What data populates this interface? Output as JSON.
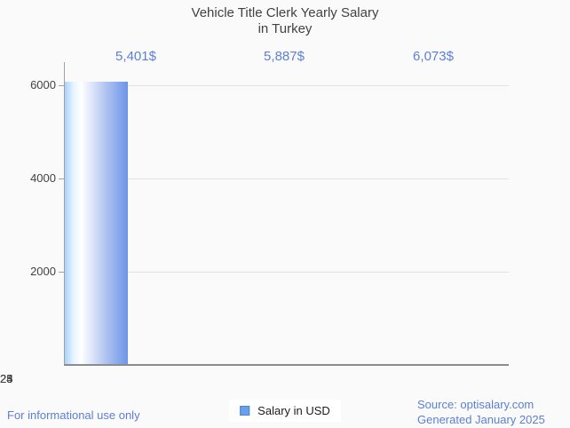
{
  "title": {
    "line1": "Vehicle Title Clerk Yearly Salary",
    "line2": "in Turkey"
  },
  "chart_data": {
    "type": "bar",
    "title": "Vehicle Title Clerk Yearly Salary in Turkey",
    "categories": [
      "2023",
      "2024",
      "2025"
    ],
    "values": [
      5401,
      5887,
      6073
    ],
    "value_labels": [
      "5,401$",
      "5,887$",
      "6,073$"
    ],
    "series": [
      {
        "name": "Salary in USD",
        "values": [
          5401,
          5887,
          6073
        ]
      }
    ],
    "xlabel": "",
    "ylabel": "",
    "ylim": [
      0,
      6500
    ],
    "yticks": [
      2000,
      4000,
      6000
    ],
    "ytick_labels": [
      "2000",
      "4000",
      "6000"
    ],
    "grid": "horizontal",
    "legend_position": "bottom-center"
  },
  "legend": {
    "label": "Salary in USD"
  },
  "footer": {
    "disclaimer": "For informational use only",
    "source": "Source: optisalary.com",
    "generated": "Generated January 2025"
  },
  "colors": {
    "background": "#fafafa",
    "accent_blue": "#5c7fd6",
    "text_dark": "#424242",
    "bar_gradient_left": "#a6d3fe",
    "bar_gradient_mid": "#ffffff",
    "bar_gradient_right": "#6d94e6",
    "legend_marker_fill": "#67a1eb",
    "legend_marker_border": "#4a82cf",
    "gridline": "#e2e2e2",
    "axis": "#8c8c8c"
  }
}
